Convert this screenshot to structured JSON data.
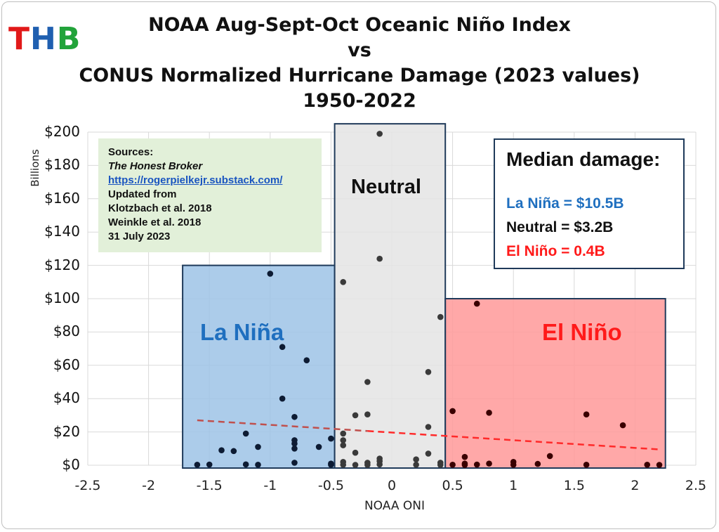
{
  "logo": {
    "t": "T",
    "h": "H",
    "b": "B"
  },
  "title_lines": [
    "NOAA Aug-Sept-Oct Oceanic Niño Index",
    "vs",
    "CONUS Normalized Hurricane Damage (2023 values)",
    "1950-2022"
  ],
  "sources": {
    "heading": "Sources:",
    "blog": "The Honest Broker",
    "url": "https://rogerpielkejr.substack.com/",
    "updated": "Updated from",
    "ref1": "Klotzbach et al. 2018",
    "ref2": "Weinkle et al. 2018",
    "date": "31 July 2023"
  },
  "median_box": {
    "heading": "Median damage:",
    "la_nina": "La Niña = $10.5B",
    "neutral": "Neutral = $3.2B",
    "el_nino": "El Niño = 0.4B"
  },
  "regions": {
    "la_nina": "La Niña",
    "neutral": "Neutral",
    "el_nino": "El Niño"
  },
  "colors": {
    "la_nina_fill": "#9dc3e6",
    "la_nina_text": "#1f6fbf",
    "neutral_fill": "#e4e4e4",
    "el_nino_fill": "#ff9999",
    "el_nino_text": "#ff1a1a",
    "box_border": "#1f3a5a",
    "trend_left": "#c0504d",
    "trend_right": "#ff2a2a"
  },
  "chart_data": {
    "type": "scatter",
    "xlabel": "NOAA ONI",
    "ylabel": "Billions",
    "xlim": [
      -2.5,
      2.5
    ],
    "ylim": [
      0,
      200
    ],
    "x_ticks": [
      "-2.5",
      "-2",
      "-1.5",
      "-1",
      "-0.5",
      "0",
      "0.5",
      "1",
      "1.5",
      "2",
      "2.5"
    ],
    "y_ticks": [
      "$0",
      "$20",
      "$40",
      "$60",
      "$80",
      "$100",
      "$120",
      "$140",
      "$160",
      "$180",
      "$200"
    ],
    "grid": true,
    "regions": [
      {
        "name": "La Niña",
        "x": [
          -1.72,
          -0.47
        ],
        "y_top": 120
      },
      {
        "name": "Neutral",
        "x": [
          -0.47,
          0.44
        ],
        "y_top": 205
      },
      {
        "name": "El Niño",
        "x": [
          0.44,
          2.25
        ],
        "y_top": 100
      }
    ],
    "trendline": {
      "x": [
        -1.6,
        2.2
      ],
      "y": [
        27,
        9.5
      ],
      "style": "dashed"
    },
    "points": [
      {
        "x": -1.6,
        "y": 0.3
      },
      {
        "x": -1.5,
        "y": 0.4
      },
      {
        "x": -1.4,
        "y": 9
      },
      {
        "x": -1.3,
        "y": 8.5
      },
      {
        "x": -1.2,
        "y": 19
      },
      {
        "x": -1.2,
        "y": 0.5
      },
      {
        "x": -1.1,
        "y": 11
      },
      {
        "x": -1.1,
        "y": 0.3
      },
      {
        "x": -1.0,
        "y": 115
      },
      {
        "x": -0.9,
        "y": 71
      },
      {
        "x": -0.9,
        "y": 40
      },
      {
        "x": -0.8,
        "y": 29
      },
      {
        "x": -0.8,
        "y": 15
      },
      {
        "x": -0.8,
        "y": 13
      },
      {
        "x": -0.8,
        "y": 10
      },
      {
        "x": -0.8,
        "y": 1.5
      },
      {
        "x": -0.7,
        "y": 63
      },
      {
        "x": -0.6,
        "y": 11
      },
      {
        "x": -0.5,
        "y": 16
      },
      {
        "x": -0.5,
        "y": 1
      },
      {
        "x": -0.5,
        "y": 0.3
      },
      {
        "x": -0.4,
        "y": 110
      },
      {
        "x": -0.4,
        "y": 19
      },
      {
        "x": -0.4,
        "y": 15
      },
      {
        "x": -0.4,
        "y": 12
      },
      {
        "x": -0.4,
        "y": 2
      },
      {
        "x": -0.4,
        "y": 0.3
      },
      {
        "x": -0.3,
        "y": 30
      },
      {
        "x": -0.3,
        "y": 7.5
      },
      {
        "x": -0.3,
        "y": 0.2
      },
      {
        "x": -0.2,
        "y": 50
      },
      {
        "x": -0.2,
        "y": 30.5
      },
      {
        "x": -0.2,
        "y": 1.5
      },
      {
        "x": -0.2,
        "y": 0.2
      },
      {
        "x": -0.1,
        "y": 199
      },
      {
        "x": -0.1,
        "y": 124
      },
      {
        "x": -0.1,
        "y": 4
      },
      {
        "x": -0.1,
        "y": 2.5
      },
      {
        "x": -0.1,
        "y": 0.5
      },
      {
        "x": 0.2,
        "y": 3.5
      },
      {
        "x": 0.2,
        "y": 0.3
      },
      {
        "x": 0.3,
        "y": 56
      },
      {
        "x": 0.3,
        "y": 23
      },
      {
        "x": 0.3,
        "y": 7
      },
      {
        "x": 0.4,
        "y": 89
      },
      {
        "x": 0.4,
        "y": 1.5
      },
      {
        "x": 0.4,
        "y": 0.2
      },
      {
        "x": 0.5,
        "y": 32.5
      },
      {
        "x": 0.5,
        "y": 0.3
      },
      {
        "x": 0.6,
        "y": 5
      },
      {
        "x": 0.6,
        "y": 1
      },
      {
        "x": 0.6,
        "y": 0.2
      },
      {
        "x": 0.7,
        "y": 97
      },
      {
        "x": 0.7,
        "y": 0.4
      },
      {
        "x": 0.8,
        "y": 31.5
      },
      {
        "x": 0.8,
        "y": 1
      },
      {
        "x": 1.0,
        "y": 2
      },
      {
        "x": 1.0,
        "y": 0.3
      },
      {
        "x": 1.2,
        "y": 0.8
      },
      {
        "x": 1.3,
        "y": 5.5
      },
      {
        "x": 1.6,
        "y": 30.5
      },
      {
        "x": 1.6,
        "y": 0.3
      },
      {
        "x": 1.9,
        "y": 24
      },
      {
        "x": 2.1,
        "y": 0.3
      },
      {
        "x": 2.2,
        "y": 0.2
      }
    ]
  }
}
